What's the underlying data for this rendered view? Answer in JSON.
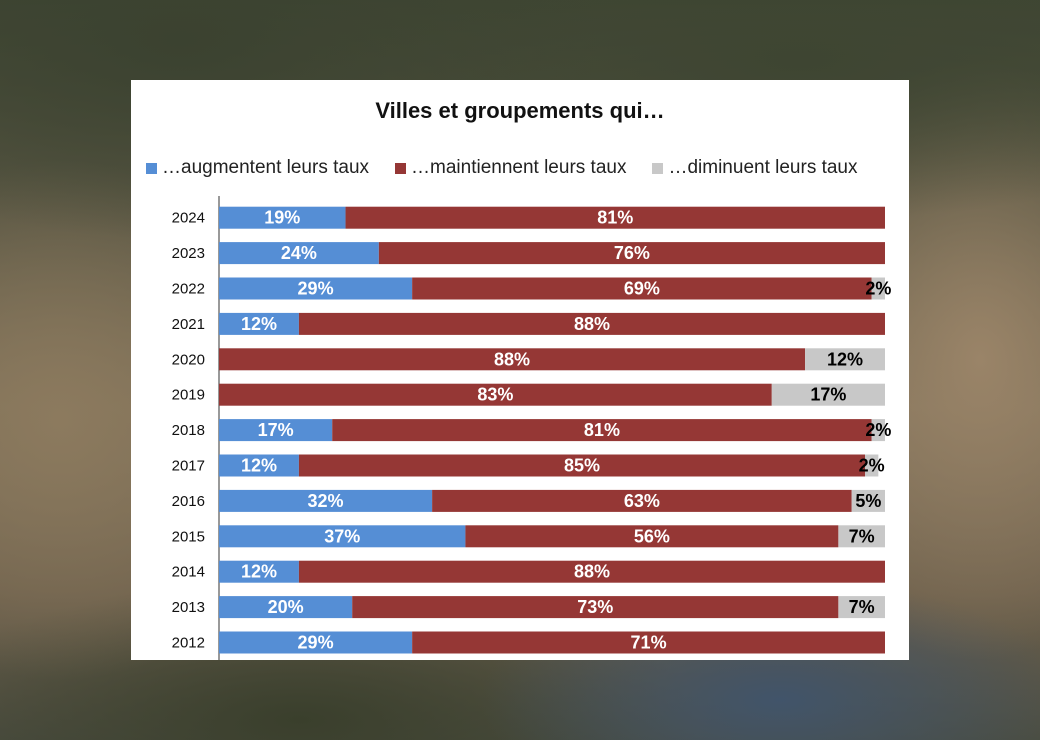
{
  "chart_data": {
    "type": "bar",
    "orientation": "horizontal",
    "stacked": true,
    "title": "Villes et groupements qui…",
    "legend_position": "top",
    "categories": [
      "2024",
      "2023",
      "2022",
      "2021",
      "2020",
      "2019",
      "2018",
      "2017",
      "2016",
      "2015",
      "2014",
      "2013",
      "2012"
    ],
    "xlim": [
      0,
      100
    ],
    "grid": false,
    "series": [
      {
        "name": "…augmentent leurs taux",
        "color": "#558ed5",
        "label_color": "#ffffff",
        "values": [
          19,
          24,
          29,
          12,
          0,
          0,
          17,
          12,
          32,
          37,
          12,
          20,
          29
        ]
      },
      {
        "name": "…maintiennent leurs taux",
        "color": "#953735",
        "label_color": "#ffffff",
        "values": [
          81,
          76,
          69,
          88,
          88,
          83,
          81,
          85,
          63,
          56,
          88,
          73,
          71
        ]
      },
      {
        "name": "…diminuent leurs taux",
        "color": "#c8c8c8",
        "label_color": "#000000",
        "values": [
          0,
          0,
          2,
          0,
          12,
          17,
          2,
          2,
          5,
          7,
          0,
          7,
          0
        ]
      }
    ],
    "value_suffix": "%"
  }
}
